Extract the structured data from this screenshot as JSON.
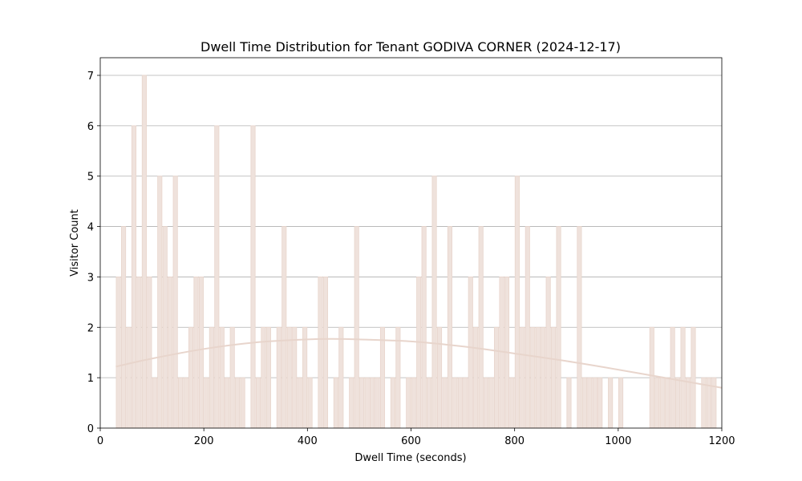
{
  "chart_data": {
    "type": "bar",
    "title": "Dwell Time Distribution for Tenant GODIVA CORNER (2024-12-17)",
    "xlabel": "Dwell Time (seconds)",
    "ylabel": "Visitor Count",
    "xlim": [
      0,
      1200
    ],
    "ylim": [
      0,
      7.35
    ],
    "xticks": [
      0,
      200,
      400,
      600,
      800,
      1000,
      1200
    ],
    "yticks": [
      0,
      1,
      2,
      3,
      4,
      5,
      6,
      7
    ],
    "grid": "y",
    "legend": "none",
    "bar_color": "#efe2dc",
    "bar_edge_color": "#e8d5cc",
    "curve_color": "#e8d5cc",
    "bin_width": 10,
    "bins": [
      {
        "x": 35,
        "count": 3
      },
      {
        "x": 45,
        "count": 4
      },
      {
        "x": 55,
        "count": 2
      },
      {
        "x": 65,
        "count": 6
      },
      {
        "x": 75,
        "count": 3
      },
      {
        "x": 85,
        "count": 7
      },
      {
        "x": 95,
        "count": 3
      },
      {
        "x": 105,
        "count": 1
      },
      {
        "x": 115,
        "count": 5
      },
      {
        "x": 125,
        "count": 4
      },
      {
        "x": 135,
        "count": 3
      },
      {
        "x": 145,
        "count": 5
      },
      {
        "x": 155,
        "count": 1
      },
      {
        "x": 165,
        "count": 1
      },
      {
        "x": 175,
        "count": 2
      },
      {
        "x": 185,
        "count": 3
      },
      {
        "x": 195,
        "count": 3
      },
      {
        "x": 205,
        "count": 1
      },
      {
        "x": 215,
        "count": 2
      },
      {
        "x": 225,
        "count": 6
      },
      {
        "x": 235,
        "count": 2
      },
      {
        "x": 245,
        "count": 1
      },
      {
        "x": 255,
        "count": 2
      },
      {
        "x": 265,
        "count": 1
      },
      {
        "x": 275,
        "count": 1
      },
      {
        "x": 295,
        "count": 6
      },
      {
        "x": 305,
        "count": 1
      },
      {
        "x": 315,
        "count": 2
      },
      {
        "x": 325,
        "count": 2
      },
      {
        "x": 345,
        "count": 2
      },
      {
        "x": 355,
        "count": 4
      },
      {
        "x": 365,
        "count": 2
      },
      {
        "x": 375,
        "count": 2
      },
      {
        "x": 385,
        "count": 1
      },
      {
        "x": 395,
        "count": 2
      },
      {
        "x": 405,
        "count": 1
      },
      {
        "x": 425,
        "count": 3
      },
      {
        "x": 435,
        "count": 3
      },
      {
        "x": 455,
        "count": 1
      },
      {
        "x": 465,
        "count": 2
      },
      {
        "x": 485,
        "count": 1
      },
      {
        "x": 495,
        "count": 4
      },
      {
        "x": 505,
        "count": 1
      },
      {
        "x": 515,
        "count": 1
      },
      {
        "x": 525,
        "count": 1
      },
      {
        "x": 535,
        "count": 1
      },
      {
        "x": 545,
        "count": 2
      },
      {
        "x": 565,
        "count": 1
      },
      {
        "x": 575,
        "count": 2
      },
      {
        "x": 595,
        "count": 1
      },
      {
        "x": 605,
        "count": 1
      },
      {
        "x": 615,
        "count": 3
      },
      {
        "x": 625,
        "count": 4
      },
      {
        "x": 635,
        "count": 1
      },
      {
        "x": 645,
        "count": 5
      },
      {
        "x": 655,
        "count": 2
      },
      {
        "x": 665,
        "count": 1
      },
      {
        "x": 675,
        "count": 4
      },
      {
        "x": 685,
        "count": 1
      },
      {
        "x": 695,
        "count": 1
      },
      {
        "x": 705,
        "count": 1
      },
      {
        "x": 715,
        "count": 3
      },
      {
        "x": 725,
        "count": 2
      },
      {
        "x": 735,
        "count": 4
      },
      {
        "x": 745,
        "count": 1
      },
      {
        "x": 755,
        "count": 1
      },
      {
        "x": 765,
        "count": 2
      },
      {
        "x": 775,
        "count": 3
      },
      {
        "x": 785,
        "count": 3
      },
      {
        "x": 795,
        "count": 1
      },
      {
        "x": 805,
        "count": 5
      },
      {
        "x": 815,
        "count": 2
      },
      {
        "x": 825,
        "count": 4
      },
      {
        "x": 835,
        "count": 2
      },
      {
        "x": 845,
        "count": 2
      },
      {
        "x": 855,
        "count": 2
      },
      {
        "x": 865,
        "count": 3
      },
      {
        "x": 875,
        "count": 2
      },
      {
        "x": 885,
        "count": 4
      },
      {
        "x": 905,
        "count": 1
      },
      {
        "x": 925,
        "count": 4
      },
      {
        "x": 935,
        "count": 1
      },
      {
        "x": 945,
        "count": 1
      },
      {
        "x": 955,
        "count": 1
      },
      {
        "x": 965,
        "count": 1
      },
      {
        "x": 985,
        "count": 1
      },
      {
        "x": 1005,
        "count": 1
      },
      {
        "x": 1065,
        "count": 2
      },
      {
        "x": 1075,
        "count": 1
      },
      {
        "x": 1085,
        "count": 1
      },
      {
        "x": 1095,
        "count": 1
      },
      {
        "x": 1105,
        "count": 2
      },
      {
        "x": 1115,
        "count": 1
      },
      {
        "x": 1125,
        "count": 2
      },
      {
        "x": 1135,
        "count": 1
      },
      {
        "x": 1145,
        "count": 2
      },
      {
        "x": 1165,
        "count": 1
      },
      {
        "x": 1175,
        "count": 1
      },
      {
        "x": 1185,
        "count": 1
      }
    ],
    "curve": {
      "x": [
        30,
        100,
        200,
        300,
        400,
        450,
        500,
        600,
        700,
        800,
        900,
        1000,
        1100,
        1200
      ],
      "y": [
        1.22,
        1.38,
        1.57,
        1.7,
        1.76,
        1.77,
        1.76,
        1.72,
        1.62,
        1.48,
        1.33,
        1.16,
        0.98,
        0.8
      ]
    }
  }
}
